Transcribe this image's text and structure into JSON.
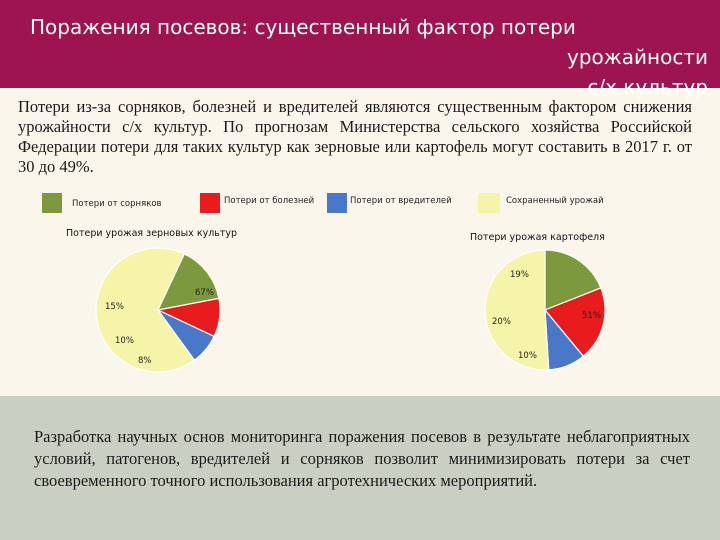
{
  "header": {
    "title_line1": "Поражения посевов: существенный фактор потери урожайности",
    "title_line2": "с/х культур"
  },
  "intro": {
    "text": "Потери из-за сорняков, болезней и вредителей являются существенным фактором снижения урожайности с/х культур. По прогнозам Министерства сельского хозяйства Российской Федерации потери для таких культур как зерновые или картофель могут составить в 2017 г. от 30 до 49%."
  },
  "colors": {
    "weeds": "#7c9a3d",
    "diseases": "#e81c1c",
    "pests": "#4a78c8",
    "saved": "#f6f4a8"
  },
  "chart_data": [
    {
      "type": "pie",
      "title": "Потери урожая зерновых культур",
      "legend": [
        "Потери от сорняков",
        "Потери от болезней",
        "Потери от вредителей",
        "Сохраненный урожай"
      ],
      "slices": [
        {
          "category": "Сохраненный урожай",
          "value": 67,
          "label": "67%"
        },
        {
          "category": "Потери от сорняков",
          "value": 15,
          "label": "15%"
        },
        {
          "category": "Потери от болезней",
          "value": 10,
          "label": "10%"
        },
        {
          "category": "Потери от вредителей",
          "value": 8,
          "label": "8%"
        }
      ]
    },
    {
      "type": "pie",
      "title": "Потери урожая картофеля",
      "slices": [
        {
          "category": "Потери от сорняков",
          "value": 19,
          "label": "19%"
        },
        {
          "category": "Потери от болезней",
          "value": 20,
          "label": "20%"
        },
        {
          "category": "Потери от вредителей",
          "value": 10,
          "label": "10%"
        },
        {
          "category": "Сохраненный урожай",
          "value": 51,
          "label": "51%"
        }
      ]
    }
  ],
  "footer": {
    "text": "Разработка научных основ мониторинга поражения посевов в результате неблагоприятных условий, патогенов, вредителей и сорняков позволит минимизировать потери за счет своевременного точного использования агротехнических мероприятий."
  }
}
